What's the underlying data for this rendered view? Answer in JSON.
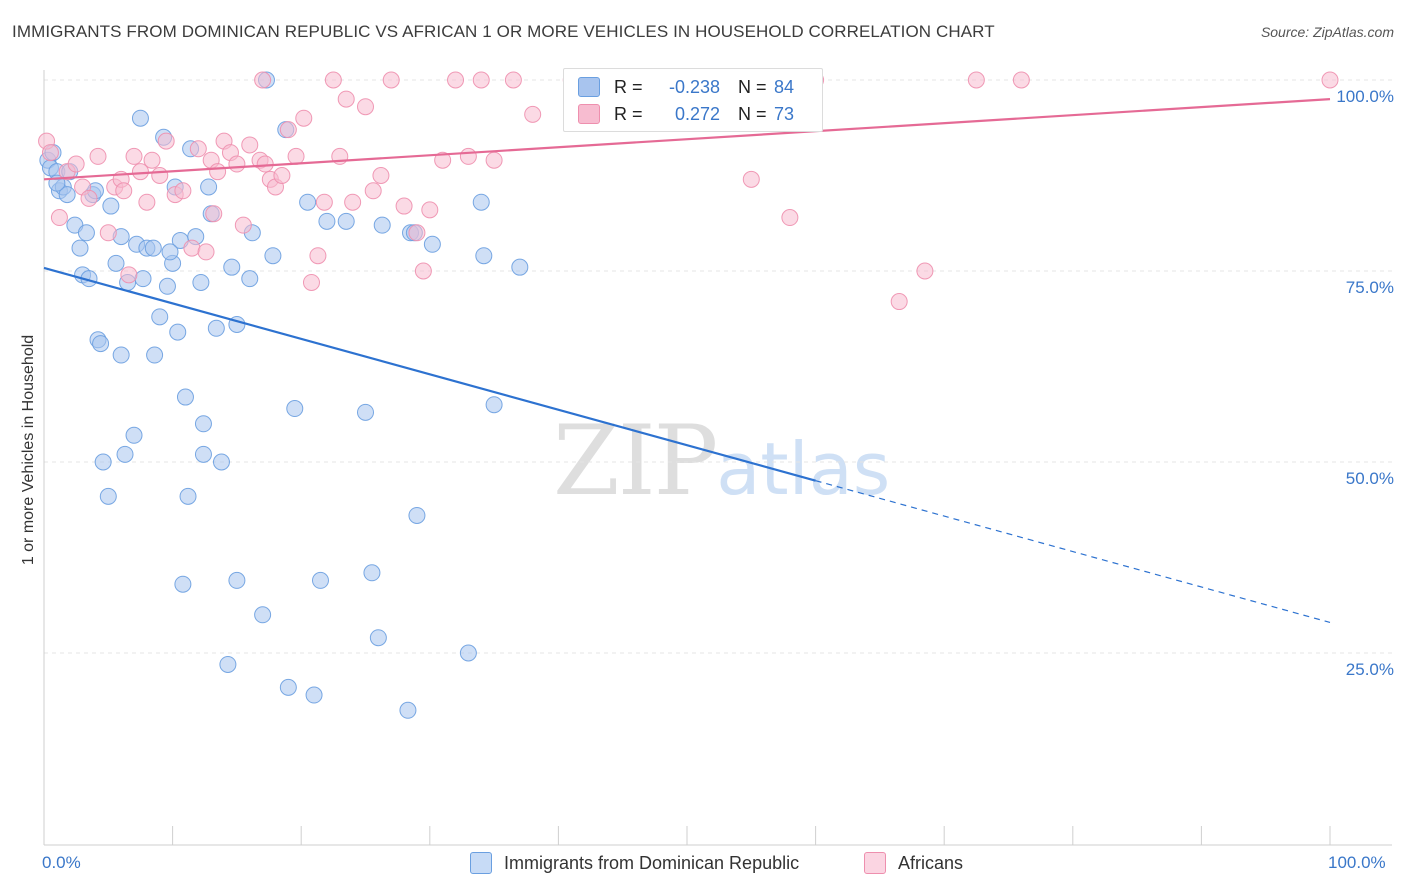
{
  "title": "IMMIGRANTS FROM DOMINICAN REPUBLIC VS AFRICAN 1 OR MORE VEHICLES IN HOUSEHOLD CORRELATION CHART",
  "source": "Source: ZipAtlas.com",
  "watermark": {
    "zip": "ZIP",
    "atlas": "atlas"
  },
  "legend": {
    "rows": [
      {
        "r_label": "R =",
        "r_value": "-0.238",
        "n_label": "N =",
        "n_value": "84",
        "color": "#a8c4ee"
      },
      {
        "r_label": "R =",
        "r_value": "0.272",
        "n_label": "N =",
        "n_value": "73",
        "color": "#f7bcd0"
      }
    ]
  },
  "chart_data": {
    "type": "scatter",
    "title": "IMMIGRANTS FROM DOMINICAN REPUBLIC VS AFRICAN 1 OR MORE VEHICLES IN HOUSEHOLD CORRELATION CHART",
    "xlabel": "",
    "ylabel": "1 or more Vehicles in Household",
    "xlim": [
      0,
      100
    ],
    "ylim": [
      0,
      103
    ],
    "x_tick_labels": [
      "0.0%",
      "100.0%"
    ],
    "y_tick_labels": [
      {
        "value": 100,
        "label": "100.0%"
      },
      {
        "value": 75,
        "label": "75.0%"
      },
      {
        "value": 50,
        "label": "50.0%"
      },
      {
        "value": 25,
        "label": "25.0%"
      }
    ],
    "grid": true,
    "legend_position": "bottom",
    "series": [
      {
        "name": "Immigrants from Dominican Republic",
        "color": "#6a9fe0",
        "fill": "#a8c4ee",
        "line_color": "#2d72d0",
        "trend": {
          "x0": 0,
          "y0": 75.4,
          "x1": 100,
          "y1": 29.0,
          "solid_until_x": 60
        },
        "points": [
          [
            0.3,
            89.5
          ],
          [
            0.5,
            88.5
          ],
          [
            0.7,
            90.5
          ],
          [
            1.0,
            88.0
          ],
          [
            1.2,
            85.5
          ],
          [
            1.5,
            86.0
          ],
          [
            1.8,
            85.0
          ],
          [
            2.4,
            81.0
          ],
          [
            2.8,
            78.0
          ],
          [
            3.0,
            74.5
          ],
          [
            3.5,
            74.0
          ],
          [
            3.8,
            85.0
          ],
          [
            4.0,
            85.5
          ],
          [
            4.2,
            66.0
          ],
          [
            4.4,
            65.5
          ],
          [
            5.2,
            83.5
          ],
          [
            5.6,
            76.0
          ],
          [
            6.0,
            79.5
          ],
          [
            6.5,
            73.5
          ],
          [
            7.2,
            78.5
          ],
          [
            7.5,
            95.0
          ],
          [
            7.7,
            74.0
          ],
          [
            8.0,
            78.0
          ],
          [
            8.5,
            78.0
          ],
          [
            9.0,
            69.0
          ],
          [
            9.3,
            92.5
          ],
          [
            9.6,
            73.0
          ],
          [
            10.0,
            76.0
          ],
          [
            10.2,
            86.0
          ],
          [
            10.4,
            67.0
          ],
          [
            10.6,
            79.0
          ],
          [
            11.4,
            91.0
          ],
          [
            11.8,
            79.5
          ],
          [
            12.2,
            73.5
          ],
          [
            12.8,
            86.0
          ],
          [
            13.0,
            82.5
          ],
          [
            13.4,
            67.5
          ],
          [
            14.6,
            75.5
          ],
          [
            15.0,
            68.0
          ],
          [
            16.0,
            74.0
          ],
          [
            16.2,
            80.0
          ],
          [
            17.3,
            100.0
          ],
          [
            17.8,
            77.0
          ],
          [
            18.8,
            93.5
          ],
          [
            20.5,
            84.0
          ],
          [
            22.0,
            81.5
          ],
          [
            23.5,
            81.5
          ],
          [
            26.3,
            81.0
          ],
          [
            28.5,
            80.0
          ],
          [
            28.8,
            80.0
          ],
          [
            30.2,
            78.5
          ],
          [
            34.0,
            84.0
          ],
          [
            34.2,
            77.0
          ],
          [
            37.0,
            75.5
          ],
          [
            35.0,
            57.5
          ],
          [
            6.0,
            64.0
          ],
          [
            8.6,
            64.0
          ],
          [
            11.0,
            58.5
          ],
          [
            12.4,
            55.0
          ],
          [
            7.0,
            53.5
          ],
          [
            6.3,
            51.0
          ],
          [
            4.6,
            50.0
          ],
          [
            12.4,
            51.0
          ],
          [
            13.8,
            50.0
          ],
          [
            5.0,
            45.5
          ],
          [
            11.2,
            45.5
          ],
          [
            19.5,
            57.0
          ],
          [
            25.0,
            56.5
          ],
          [
            29.0,
            43.0
          ],
          [
            10.8,
            34.0
          ],
          [
            15.0,
            34.5
          ],
          [
            21.5,
            34.5
          ],
          [
            25.5,
            35.5
          ],
          [
            17.0,
            30.0
          ],
          [
            26.0,
            27.0
          ],
          [
            33.0,
            25.0
          ],
          [
            14.3,
            23.5
          ],
          [
            19.0,
            20.5
          ],
          [
            21.0,
            19.5
          ],
          [
            28.3,
            17.5
          ],
          [
            1.0,
            86.5
          ],
          [
            2.0,
            88.0
          ],
          [
            3.3,
            80.0
          ],
          [
            9.8,
            77.5
          ]
        ]
      },
      {
        "name": "Africans",
        "color": "#ee8fae",
        "fill": "#f7bcd0",
        "line_color": "#e56a95",
        "trend": {
          "x0": 0,
          "y0": 87.0,
          "x1": 100,
          "y1": 97.5
        },
        "points": [
          [
            0.2,
            92.0
          ],
          [
            0.5,
            90.5
          ],
          [
            1.2,
            82.0
          ],
          [
            1.8,
            88.0
          ],
          [
            2.5,
            89.0
          ],
          [
            3.0,
            86.0
          ],
          [
            3.5,
            84.5
          ],
          [
            4.2,
            90.0
          ],
          [
            5.0,
            80.0
          ],
          [
            5.5,
            86.0
          ],
          [
            6.0,
            87.0
          ],
          [
            6.6,
            74.5
          ],
          [
            7.0,
            90.0
          ],
          [
            7.5,
            88.0
          ],
          [
            8.0,
            84.0
          ],
          [
            8.4,
            89.5
          ],
          [
            9.0,
            87.5
          ],
          [
            9.5,
            92.0
          ],
          [
            10.2,
            85.0
          ],
          [
            10.8,
            85.5
          ],
          [
            11.5,
            78.0
          ],
          [
            12.0,
            91.0
          ],
          [
            12.6,
            77.5
          ],
          [
            13.0,
            89.5
          ],
          [
            13.5,
            88.0
          ],
          [
            14.0,
            92.0
          ],
          [
            14.5,
            90.5
          ],
          [
            15.0,
            89.0
          ],
          [
            15.5,
            81.0
          ],
          [
            16.0,
            91.5
          ],
          [
            16.8,
            89.5
          ],
          [
            17.2,
            89.0
          ],
          [
            17.6,
            87.0
          ],
          [
            18.0,
            86.0
          ],
          [
            18.5,
            87.5
          ],
          [
            19.0,
            93.5
          ],
          [
            19.6,
            90.0
          ],
          [
            20.2,
            95.0
          ],
          [
            20.8,
            73.5
          ],
          [
            21.3,
            77.0
          ],
          [
            21.8,
            84.0
          ],
          [
            22.5,
            100.0
          ],
          [
            23.0,
            90.0
          ],
          [
            23.5,
            97.5
          ],
          [
            24.0,
            84.0
          ],
          [
            25.0,
            96.5
          ],
          [
            25.6,
            85.5
          ],
          [
            26.2,
            87.5
          ],
          [
            27.0,
            100.0
          ],
          [
            28.0,
            83.5
          ],
          [
            29.0,
            80.0
          ],
          [
            29.5,
            75.0
          ],
          [
            30.0,
            83.0
          ],
          [
            31.0,
            89.5
          ],
          [
            32.0,
            100.0
          ],
          [
            33.0,
            90.0
          ],
          [
            34.0,
            100.0
          ],
          [
            35.0,
            89.5
          ],
          [
            36.5,
            100.0
          ],
          [
            38.0,
            95.5
          ],
          [
            41.0,
            100.0
          ],
          [
            59.5,
            100.0
          ],
          [
            60.0,
            100.0
          ],
          [
            55.0,
            87.0
          ],
          [
            58.0,
            82.0
          ],
          [
            66.5,
            71.0
          ],
          [
            68.5,
            75.0
          ],
          [
            72.5,
            100.0
          ],
          [
            76.0,
            100.0
          ],
          [
            100.0,
            100.0
          ],
          [
            17.0,
            100.0
          ],
          [
            13.2,
            82.5
          ],
          [
            6.2,
            85.5
          ]
        ]
      }
    ]
  },
  "bottom_legend": {
    "items": [
      {
        "label": "Immigrants from Dominican Republic",
        "color": "#a8c4ee"
      },
      {
        "label": "Africans",
        "color": "#f7bcd0"
      }
    ]
  }
}
